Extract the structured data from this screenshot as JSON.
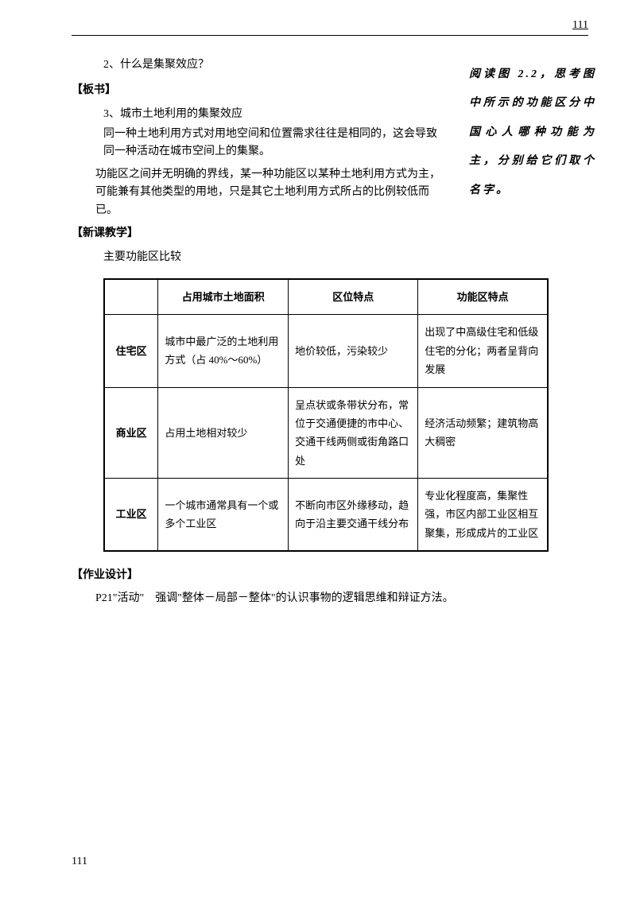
{
  "page_number_top": "111",
  "page_number_bottom": "111",
  "q2": "2、什么是集聚效应？",
  "section_banshu": "【板书】",
  "q3": "3、城市土地利用的集聚效应",
  "para1": "同一种土地利用方式对用地空间和位置需求往往是相同的，这会导致同一种活动在城市空间上的集聚。",
  "para2": "功能区之间并无明确的界线，某一种功能区以某种土地利用方式为主，可能兼有其他类型的用地，只是其它土地利用方式所占的比例较低而已。",
  "section_xinke": "【新课教学】",
  "subtitle": "主要功能区比较",
  "side_note": "阅读图 2.2，思考图中所示的功能区分中国心人哪种功能为主，分别给它们取个名字。",
  "table": {
    "headers": [
      "",
      "占用城市土地面积",
      "区位特点",
      "功能区特点"
    ],
    "rows": [
      {
        "name": "住宅区",
        "area": "城市中最广泛的土地利用方式（占 40%～60%）",
        "location": "地价较低，污染较少",
        "feature": "出现了中高级住宅和低级住宅的分化；两者呈背向发展"
      },
      {
        "name": "商业区",
        "area": "占用土地相对较少",
        "location": "呈点状或条带状分布，常位于交通便捷的市中心、交通干线两侧或街角路口处",
        "feature": "经济活动频繁；建筑物高大稠密"
      },
      {
        "name": "工业区",
        "area": "一个城市通常具有一个或多个工业区",
        "location": "不断向市区外缘移动，趋向于沿主要交通干线分布",
        "feature": "专业化程度高，集聚性强，市区内部工业区相互聚集，形成成片的工业区"
      }
    ]
  },
  "section_zuoye": "【作业设计】",
  "assignment": "P21\"活动\"　强调\"整体－局部－整体\"的认识事物的逻辑思维和辩证方法。"
}
